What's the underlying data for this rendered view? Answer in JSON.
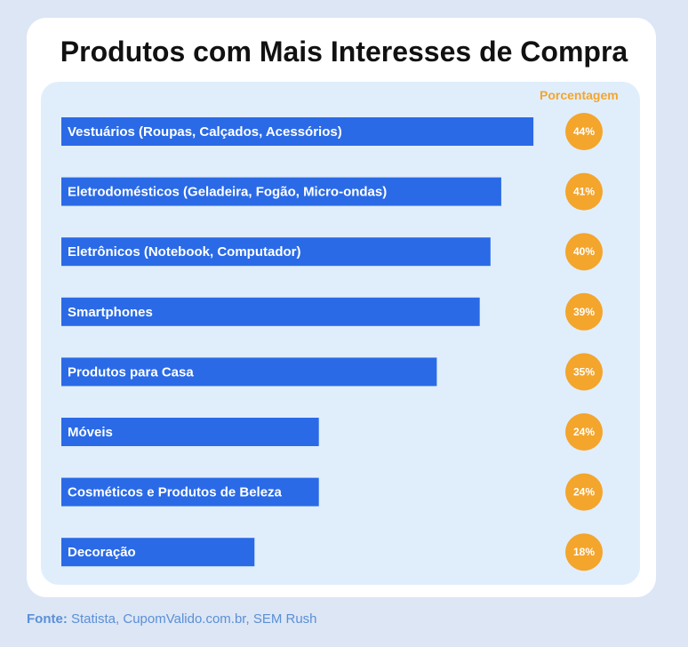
{
  "title": "Produtos com Mais Interesses de Compra",
  "legend_label": "Porcentagem",
  "source_label": "Fonte:",
  "source_text": "Statista, CupomValido.com.br, SEM Rush",
  "colors": {
    "bar": "#2a6ae6",
    "badge": "#f3a52c",
    "panel": "#e0eefc",
    "legend": "#f3a52c"
  },
  "chart_data": {
    "type": "bar",
    "orientation": "horizontal",
    "title": "Produtos com Mais Interesses de Compra",
    "xlabel": "",
    "ylabel": "",
    "value_label": "Porcentagem",
    "unit": "%",
    "categories": [
      "Vestuários (Roupas, Calçados, Acessórios)",
      "Eletrodomésticos (Geladeira, Fogão, Micro-ondas)",
      "Eletrônicos (Notebook, Computador)",
      "Smartphones",
      "Produtos para Casa",
      "Móveis",
      "Cosméticos e Produtos de Beleza",
      "Decoração"
    ],
    "values": [
      44,
      41,
      40,
      39,
      35,
      24,
      24,
      18
    ],
    "value_labels": [
      "44%",
      "41%",
      "40%",
      "39%",
      "35%",
      "24%",
      "24%",
      "18%"
    ],
    "grid": false
  }
}
